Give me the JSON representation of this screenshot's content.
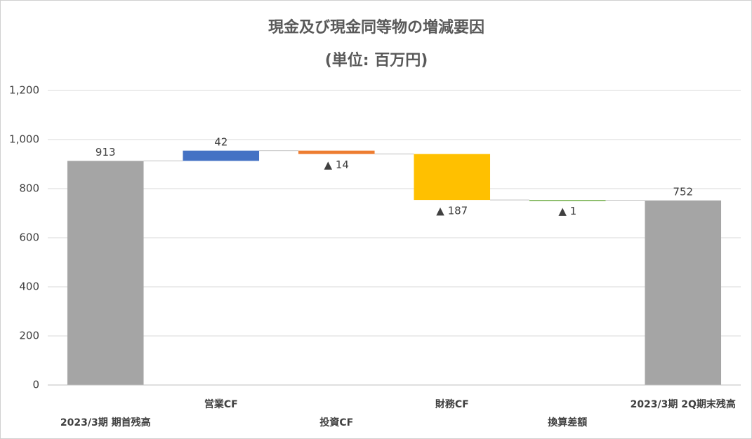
{
  "chart_data": {
    "type": "waterfall",
    "title": "現金及び現金同等物の増減要因",
    "subtitle": "(単位: 百万円)",
    "categories": [
      "2023/3期 期首残高",
      "営業CF",
      "投資CF",
      "財務CF",
      "換算差額",
      "2023/3期 2Q期末残高"
    ],
    "values": [
      913,
      42,
      -14,
      -187,
      -1,
      752
    ],
    "value_labels": [
      "913",
      "42",
      "▲ 14",
      "▲ 187",
      "▲ 1",
      "752"
    ],
    "colors": [
      "#a5a5a5",
      "#4472c4",
      "#ed7d31",
      "#ffc000",
      "#70ad47",
      "#a5a5a5"
    ],
    "ylim": [
      0,
      1200
    ],
    "yticks": [
      0,
      200,
      400,
      600,
      800,
      {
        "value": 1000,
        "label": "1,000"
      },
      {
        "value": 1200,
        "label": "1,200"
      }
    ],
    "grid": true
  }
}
